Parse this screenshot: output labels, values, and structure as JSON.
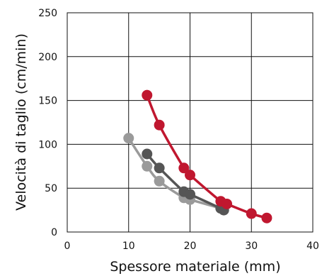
{
  "chart_data": {
    "type": "scatter",
    "title": "",
    "xlabel": "Spessore materiale (mm)",
    "ylabel": "Velocità di taglio (cm/min)",
    "xlim": [
      0,
      40
    ],
    "ylim": [
      0,
      250
    ],
    "xticks": [
      0,
      10,
      20,
      30,
      40
    ],
    "yticks": [
      0,
      50,
      100,
      150,
      200,
      250
    ],
    "grid": true,
    "legend": "none",
    "series": [
      {
        "color": "#c0172f",
        "points": [
          [
            13,
            156
          ],
          [
            15,
            122
          ],
          [
            19,
            73
          ],
          [
            20,
            65
          ],
          [
            25,
            35
          ],
          [
            26,
            32
          ],
          [
            30,
            21
          ],
          [
            32.5,
            16
          ]
        ]
      },
      {
        "color": "#555555",
        "points": [
          [
            13,
            89
          ],
          [
            15,
            73
          ],
          [
            19,
            46
          ],
          [
            20,
            43
          ],
          [
            25,
            27
          ],
          [
            25.5,
            25
          ]
        ]
      },
      {
        "color": "#9a9a9a",
        "points": [
          [
            10,
            107
          ],
          [
            13,
            75
          ],
          [
            15,
            58
          ],
          [
            19,
            39
          ],
          [
            20,
            37
          ],
          [
            25,
            27
          ]
        ]
      }
    ]
  }
}
